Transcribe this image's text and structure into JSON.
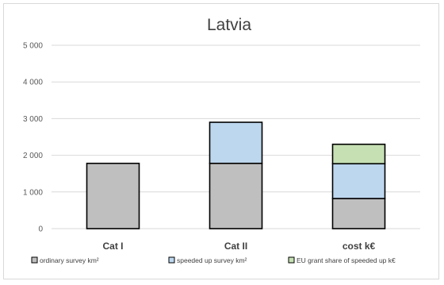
{
  "chart_data": {
    "type": "bar",
    "stacked": true,
    "title": "Latvia",
    "categories": [
      "Cat I",
      "Cat II",
      "cost  k€"
    ],
    "series": [
      {
        "name": "ordinary survey km²",
        "values": [
          1780,
          1780,
          820
        ],
        "color": "#bfbfbf"
      },
      {
        "name": "speeded up survey km²",
        "values": [
          0,
          1120,
          950
        ],
        "color": "#bdd7ee"
      },
      {
        "name": "EU grant share of speeded up k€",
        "values": [
          0,
          0,
          530
        ],
        "color": "#c6e0b4"
      }
    ],
    "ylim": [
      0,
      5000
    ],
    "yticks": [
      0,
      1000,
      2000,
      3000,
      4000,
      5000
    ],
    "ytick_labels": [
      "0",
      "1 000",
      "2 000",
      "3 000",
      "4 000",
      "5 000"
    ],
    "grid": true,
    "legend_position": "bottom"
  }
}
